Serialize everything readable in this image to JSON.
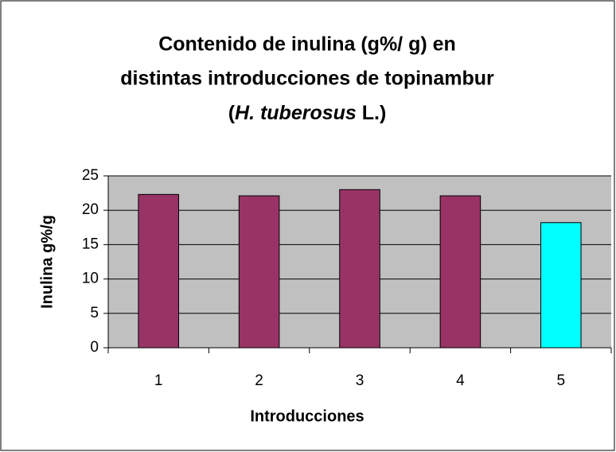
{
  "chart_data": {
    "type": "bar",
    "title": [
      "Contenido de inulina (g%/ g) en",
      "distintas introducciones de topinambur",
      [
        "(",
        "H. tuberosus",
        " L.)"
      ]
    ],
    "x_label": "Introducciones",
    "y_label": "Inulina g%/g",
    "categories": [
      "1",
      "2",
      "3",
      "4",
      "5"
    ],
    "values": [
      22.3,
      22.1,
      23,
      22.1,
      18.2
    ],
    "colors": [
      "#993366",
      "#993366",
      "#993366",
      "#993366",
      "#00ffff"
    ],
    "ylim": [
      0,
      25
    ],
    "yticks": [
      0,
      5,
      10,
      15,
      20,
      25
    ],
    "grid": true
  }
}
